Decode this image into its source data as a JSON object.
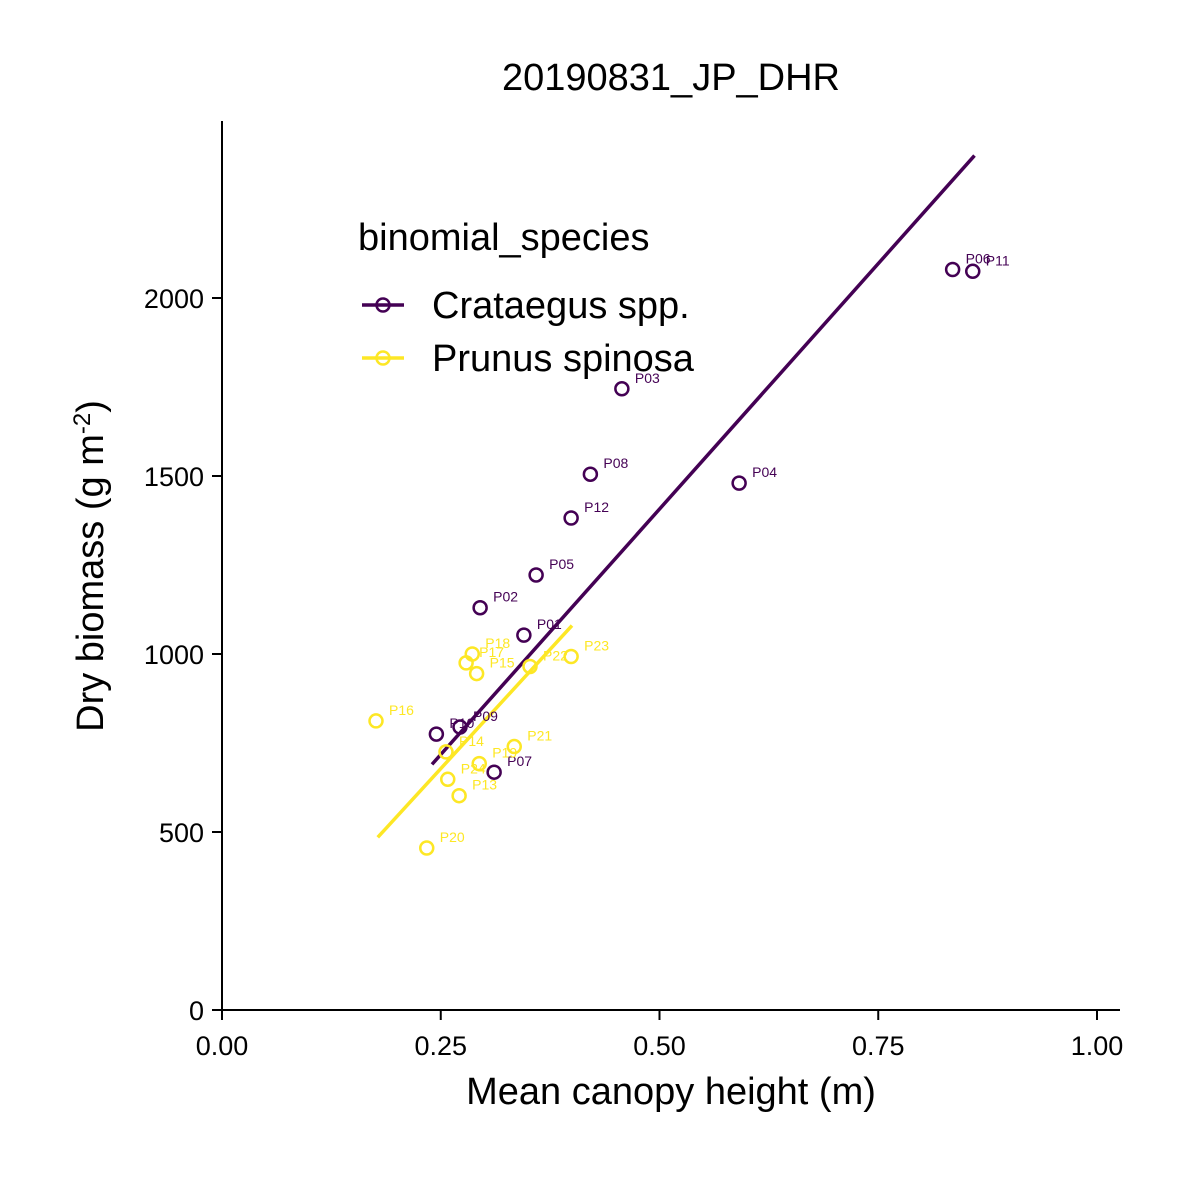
{
  "chart_data": {
    "type": "scatter",
    "title": "20190831_JP_DHR",
    "xlabel": "Mean canopy height (m)",
    "ylabel_parts": {
      "main": "Dry biomass (g m",
      "sup": "-2",
      "close": ")"
    },
    "xlim": [
      0,
      1.03
    ],
    "ylim": [
      0,
      2500
    ],
    "x_ticks": [
      0,
      0.25,
      0.5,
      0.75,
      1.0
    ],
    "x_tick_labels": [
      "0.00",
      "0.25",
      "0.50",
      "0.75",
      "1.00"
    ],
    "y_ticks": [
      0,
      500,
      1000,
      1500,
      2000
    ],
    "y_tick_labels": [
      "0",
      "500",
      "1000",
      "1500",
      "2000"
    ],
    "grid": false,
    "legend": {
      "title": "binomial_species",
      "placement": "top-left"
    },
    "series": [
      {
        "name": "Crataegus spp.",
        "color": "#440154",
        "points": [
          {
            "label": "P01",
            "x": 0.345,
            "y": 1053
          },
          {
            "label": "P02",
            "x": 0.295,
            "y": 1130
          },
          {
            "label": "P03",
            "x": 0.457,
            "y": 1745
          },
          {
            "label": "P04",
            "x": 0.591,
            "y": 1480
          },
          {
            "label": "P05",
            "x": 0.359,
            "y": 1222
          },
          {
            "label": "P06",
            "x": 0.835,
            "y": 2080
          },
          {
            "label": "P07",
            "x": 0.311,
            "y": 668
          },
          {
            "label": "P08",
            "x": 0.421,
            "y": 1505
          },
          {
            "label": "P09",
            "x": 0.272,
            "y": 795
          },
          {
            "label": "P10",
            "x": 0.245,
            "y": 775
          },
          {
            "label": "P11",
            "x": 0.858,
            "y": 2075
          },
          {
            "label": "P12",
            "x": 0.399,
            "y": 1382
          }
        ],
        "fit_line": {
          "x": [
            0.24,
            0.86
          ],
          "y": [
            690,
            2400
          ]
        }
      },
      {
        "name": "Prunus spinosa",
        "color": "#fde725",
        "points": [
          {
            "label": "P13",
            "x": 0.271,
            "y": 602
          },
          {
            "label": "P14",
            "x": 0.256,
            "y": 725
          },
          {
            "label": "P15",
            "x": 0.291,
            "y": 945
          },
          {
            "label": "P16",
            "x": 0.176,
            "y": 812
          },
          {
            "label": "P17",
            "x": 0.279,
            "y": 975
          },
          {
            "label": "P18",
            "x": 0.286,
            "y": 1000
          },
          {
            "label": "P19",
            "x": 0.294,
            "y": 692
          },
          {
            "label": "P20",
            "x": 0.234,
            "y": 455
          },
          {
            "label": "P21",
            "x": 0.334,
            "y": 740
          },
          {
            "label": "P22",
            "x": 0.352,
            "y": 965
          },
          {
            "label": "P23",
            "x": 0.399,
            "y": 993
          },
          {
            "label": "P24",
            "x": 0.258,
            "y": 648
          }
        ],
        "fit_line": {
          "x": [
            0.178,
            0.4
          ],
          "y": [
            485,
            1080
          ]
        }
      }
    ]
  }
}
